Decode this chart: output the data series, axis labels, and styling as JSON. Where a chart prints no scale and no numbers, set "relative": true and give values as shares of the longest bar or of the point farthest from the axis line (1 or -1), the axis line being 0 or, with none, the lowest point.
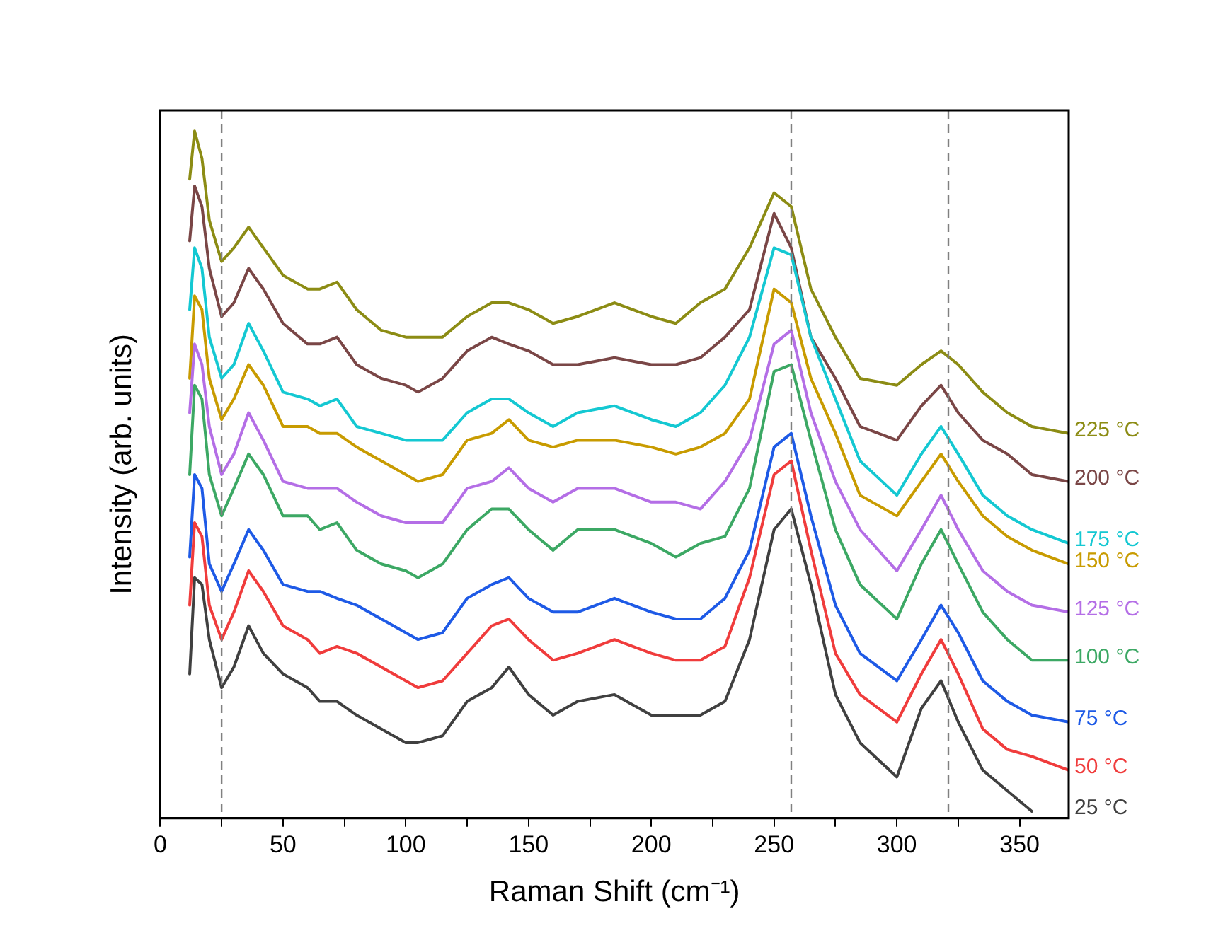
{
  "chart_data": {
    "type": "line",
    "xlabel": "Raman Shift (cm⁻¹)",
    "ylabel": "Intensity (arb. units)",
    "relative": true,
    "grid": false,
    "legend": false,
    "marker": "none",
    "line_style": "solid",
    "xlim": [
      0,
      370
    ],
    "xticks": [
      0,
      {
        "value": 25,
        "label": null
      },
      50,
      {
        "value": 75,
        "label": null
      },
      100,
      {
        "value": 125,
        "label": null
      },
      150,
      {
        "value": 175,
        "label": null
      },
      200,
      {
        "value": 225,
        "label": null
      },
      250,
      {
        "value": 275,
        "label": null
      },
      300,
      {
        "value": 325,
        "label": null
      },
      350
    ],
    "x": [
      12,
      14,
      17,
      20,
      25,
      30,
      36,
      42,
      50,
      60,
      65,
      72,
      80,
      90,
      100,
      105,
      115,
      125,
      135,
      142,
      150,
      160,
      170,
      185,
      200,
      210,
      220,
      230,
      240,
      250,
      257,
      265,
      275,
      285,
      300,
      310,
      318,
      325,
      335,
      345,
      355,
      370
    ],
    "ref_lines": [
      {
        "axis": "x",
        "value": 25,
        "color": "#808080",
        "line_style": "dashed"
      },
      {
        "axis": "x",
        "value": 257,
        "color": "#808080",
        "line_style": "dashed"
      },
      {
        "axis": "x",
        "value": 321,
        "color": "#808080",
        "line_style": "dashed"
      }
    ],
    "series": [
      {
        "name": "25 °C",
        "color": "#404040",
        "values": [
          0.21,
          0.35,
          0.34,
          0.26,
          0.19,
          0.22,
          0.28,
          0.24,
          0.21,
          0.19,
          0.17,
          0.17,
          0.15,
          0.13,
          0.11,
          0.11,
          0.12,
          0.17,
          0.19,
          0.22,
          0.18,
          0.15,
          0.17,
          0.18,
          0.15,
          0.15,
          0.15,
          0.17,
          0.26,
          0.42,
          0.45,
          0.34,
          0.18,
          0.11,
          0.06,
          0.16,
          0.2,
          0.14,
          0.07,
          0.04,
          0.01,
          null
        ]
      },
      {
        "name": "50 °C",
        "color": "#f03c3c",
        "values": [
          0.31,
          0.43,
          0.41,
          0.31,
          0.26,
          0.3,
          0.36,
          0.33,
          0.28,
          0.26,
          0.24,
          0.25,
          0.24,
          0.22,
          0.2,
          0.19,
          0.2,
          0.24,
          0.28,
          0.29,
          0.26,
          0.23,
          0.24,
          0.26,
          0.24,
          0.23,
          0.23,
          0.25,
          0.35,
          0.5,
          0.52,
          0.39,
          0.24,
          0.18,
          0.14,
          0.21,
          0.26,
          0.21,
          0.13,
          0.1,
          0.09,
          0.07
        ]
      },
      {
        "name": "75 °C",
        "color": "#1e5ae6",
        "values": [
          0.38,
          0.5,
          0.48,
          0.37,
          0.33,
          0.37,
          0.42,
          0.39,
          0.34,
          0.33,
          0.33,
          0.32,
          0.31,
          0.29,
          0.27,
          0.26,
          0.27,
          0.32,
          0.34,
          0.35,
          0.32,
          0.3,
          0.3,
          0.32,
          0.3,
          0.29,
          0.29,
          0.32,
          0.39,
          0.54,
          0.56,
          0.44,
          0.31,
          0.24,
          0.2,
          0.26,
          0.31,
          0.27,
          0.2,
          0.17,
          0.15,
          0.14
        ]
      },
      {
        "name": "100 °C",
        "color": "#3ca864",
        "values": [
          0.5,
          0.63,
          0.61,
          0.5,
          0.44,
          0.48,
          0.53,
          0.5,
          0.44,
          0.44,
          0.42,
          0.43,
          0.39,
          0.37,
          0.36,
          0.35,
          0.37,
          0.42,
          0.45,
          0.45,
          0.42,
          0.39,
          0.42,
          0.42,
          0.4,
          0.38,
          0.4,
          0.41,
          0.48,
          0.65,
          0.66,
          0.55,
          0.42,
          0.34,
          0.29,
          0.37,
          0.42,
          0.37,
          0.3,
          0.26,
          0.23,
          0.23
        ]
      },
      {
        "name": "125 °C",
        "color": "#b46ee6",
        "values": [
          0.59,
          0.69,
          0.66,
          0.57,
          0.5,
          0.53,
          0.59,
          0.55,
          0.49,
          0.48,
          0.48,
          0.48,
          0.46,
          0.44,
          0.43,
          0.43,
          0.43,
          0.48,
          0.49,
          0.51,
          0.48,
          0.46,
          0.48,
          0.48,
          0.46,
          0.46,
          0.45,
          0.49,
          0.55,
          0.69,
          0.71,
          0.59,
          0.49,
          0.42,
          0.36,
          0.42,
          0.47,
          0.42,
          0.36,
          0.33,
          0.31,
          0.3
        ]
      },
      {
        "name": "150 °C",
        "color": "#c89b00",
        "values": [
          0.64,
          0.76,
          0.74,
          0.64,
          0.58,
          0.61,
          0.66,
          0.63,
          0.57,
          0.57,
          0.56,
          0.56,
          0.54,
          0.52,
          0.5,
          0.49,
          0.5,
          0.55,
          0.56,
          0.58,
          0.55,
          0.54,
          0.55,
          0.55,
          0.54,
          0.53,
          0.54,
          0.56,
          0.61,
          0.77,
          0.75,
          0.64,
          0.56,
          0.47,
          0.44,
          0.49,
          0.53,
          0.49,
          0.44,
          0.41,
          0.39,
          0.37
        ]
      },
      {
        "name": "175 °C",
        "color": "#14c8d2",
        "values": [
          0.74,
          0.83,
          0.8,
          0.7,
          0.64,
          0.66,
          0.72,
          0.68,
          0.62,
          0.61,
          0.6,
          0.61,
          0.57,
          0.56,
          0.55,
          0.55,
          0.55,
          0.59,
          0.61,
          0.61,
          0.59,
          0.57,
          0.59,
          0.6,
          0.58,
          0.57,
          0.59,
          0.63,
          0.7,
          0.83,
          0.82,
          0.7,
          0.61,
          0.52,
          0.47,
          0.53,
          0.57,
          0.53,
          0.47,
          0.44,
          0.42,
          0.4
        ]
      },
      {
        "name": "200 °C",
        "color": "#7a4646",
        "values": [
          0.84,
          0.92,
          0.89,
          0.8,
          0.73,
          0.75,
          0.8,
          0.77,
          0.72,
          0.69,
          0.69,
          0.7,
          0.66,
          0.64,
          0.63,
          0.62,
          0.64,
          0.68,
          0.7,
          0.69,
          0.68,
          0.66,
          0.66,
          0.67,
          0.66,
          0.66,
          0.67,
          0.7,
          0.74,
          0.88,
          0.83,
          0.7,
          0.64,
          0.57,
          0.55,
          0.6,
          0.63,
          0.59,
          0.55,
          0.53,
          0.5,
          0.49
        ]
      },
      {
        "name": "225 °C",
        "color": "#8c8c14",
        "values": [
          0.93,
          1.0,
          0.96,
          0.87,
          0.81,
          0.83,
          0.86,
          0.83,
          0.79,
          0.77,
          0.77,
          0.78,
          0.74,
          0.71,
          0.7,
          0.7,
          0.7,
          0.73,
          0.75,
          0.75,
          0.74,
          0.72,
          0.73,
          0.75,
          0.73,
          0.72,
          0.75,
          0.77,
          0.83,
          0.91,
          0.89,
          0.77,
          0.7,
          0.64,
          0.63,
          0.66,
          0.68,
          0.66,
          0.62,
          0.59,
          0.57,
          0.56
        ]
      }
    ]
  }
}
